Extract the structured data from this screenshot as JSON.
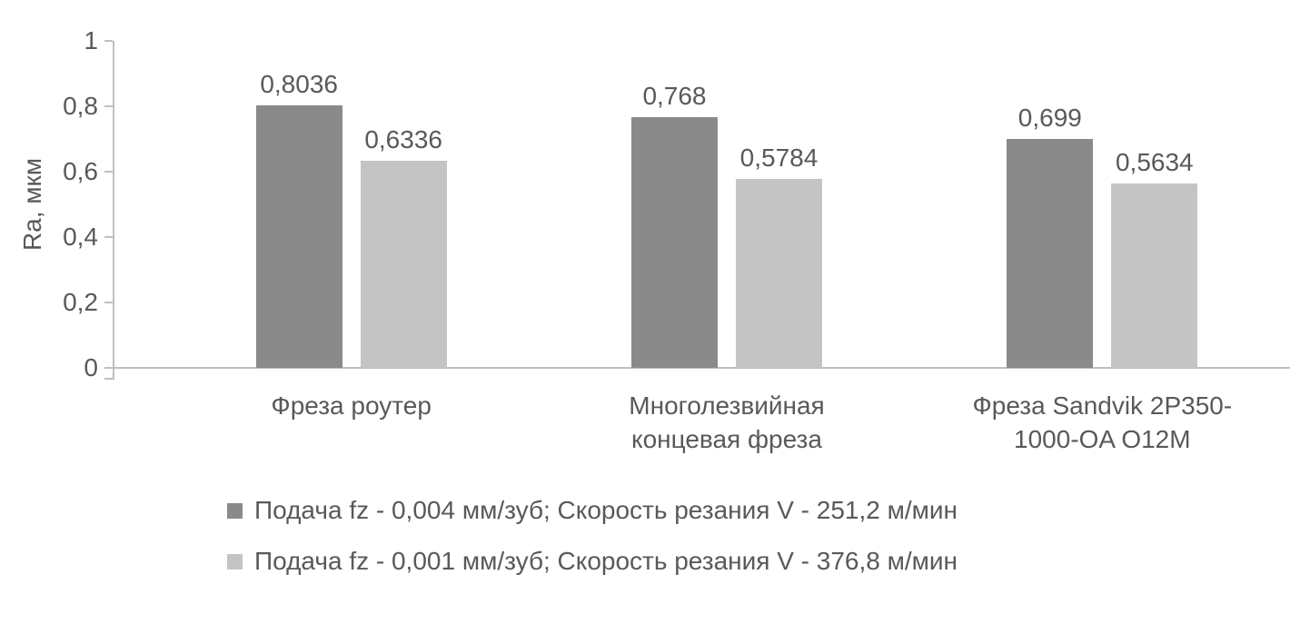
{
  "chart_data": {
    "type": "bar",
    "title": "",
    "xlabel": "",
    "ylabel": "Ra, мкм",
    "ylim": [
      0,
      1
    ],
    "yticks": [
      0,
      0.2,
      0.4,
      0.6,
      0.8,
      1
    ],
    "ytick_labels": [
      "0",
      "0,2",
      "0,4",
      "0,6",
      "0,8",
      "1"
    ],
    "grid": false,
    "legend_position": "bottom-left",
    "categories": [
      "Фреза роутер",
      "Многолезвийная концевая фреза",
      "Фреза Sandvik 2P350-1000-OA O12M"
    ],
    "category_lines": [
      [
        "Фреза роутер"
      ],
      [
        "Многолезвийная",
        "концевая фреза"
      ],
      [
        "Фреза Sandvik 2P350-",
        "1000-OA O12M"
      ]
    ],
    "series": [
      {
        "name": "Подача fz - 0,004 мм/зуб; Скорость резания V - 251,2 м/мин",
        "values": [
          0.8036,
          0.768,
          0.699
        ],
        "labels": [
          "0,8036",
          "0,768",
          "0,699"
        ],
        "color": "#8a8a8a"
      },
      {
        "name": "Подача fz - 0,001 мм/зуб; Скорость резания V - 376,8 м/мин",
        "values": [
          0.6336,
          0.5784,
          0.5634
        ],
        "labels": [
          "0,6336",
          "0,5784",
          "0,5634"
        ],
        "color": "#c4c4c4"
      }
    ],
    "colors": {
      "text": "#595959",
      "axis_line": "#c0c0c0"
    }
  }
}
